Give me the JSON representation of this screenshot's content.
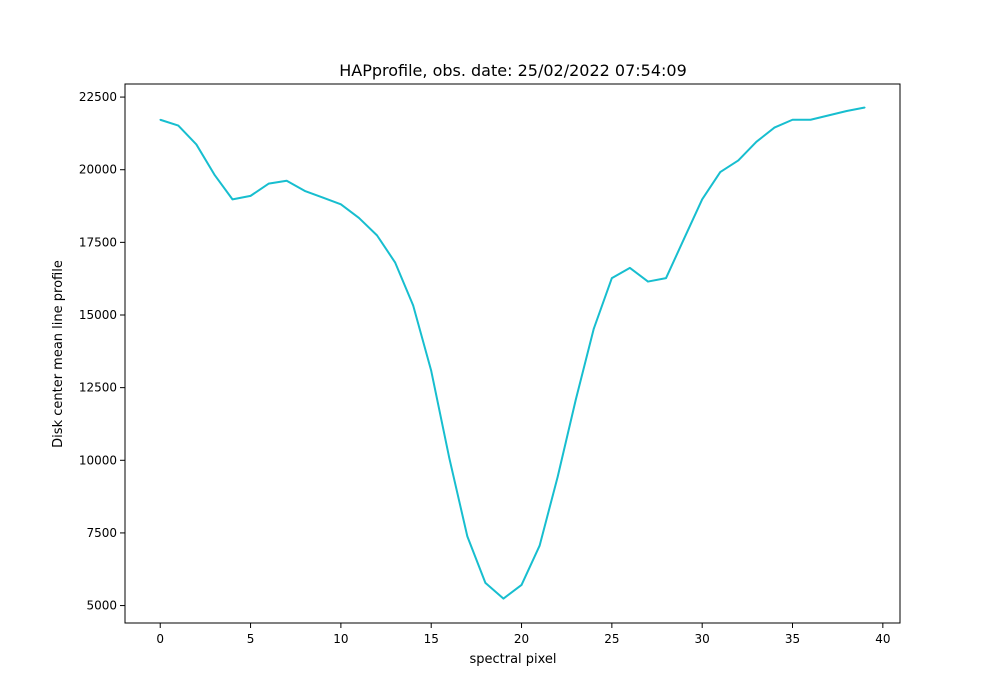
{
  "chart_data": {
    "type": "line",
    "title": "HAPprofile, obs. date: 25/02/2022 07:54:09",
    "xlabel": "spectral pixel",
    "ylabel": "Disk center mean line profile",
    "xlim": [
      -1.95,
      40.95
    ],
    "ylim": [
      4400,
      22950
    ],
    "xticks": [
      0,
      5,
      10,
      15,
      20,
      25,
      30,
      35,
      40
    ],
    "yticks": [
      5000,
      7500,
      10000,
      12500,
      15000,
      17500,
      20000,
      22500
    ],
    "grid": false,
    "legend": "none",
    "series": [
      {
        "color": "#17becf",
        "x": [
          0,
          1,
          2,
          3,
          4,
          5,
          6,
          7,
          8,
          9,
          10,
          11,
          12,
          13,
          14,
          15,
          16,
          17,
          18,
          19,
          20,
          21,
          22,
          23,
          24,
          25,
          26,
          27,
          28,
          29,
          30,
          31,
          32,
          33,
          34,
          35,
          36,
          37,
          38,
          39
        ],
        "y": [
          21720,
          21520,
          20870,
          19830,
          18980,
          19100,
          19520,
          19620,
          19270,
          19040,
          18810,
          18340,
          17740,
          16810,
          15330,
          13080,
          10080,
          7380,
          5780,
          5240,
          5710,
          7060,
          9430,
          12080,
          14530,
          16270,
          16620,
          16150,
          16270,
          17630,
          18980,
          19920,
          20320,
          20960,
          21450,
          21720,
          21720,
          21870,
          22020,
          22140
        ]
      }
    ]
  }
}
